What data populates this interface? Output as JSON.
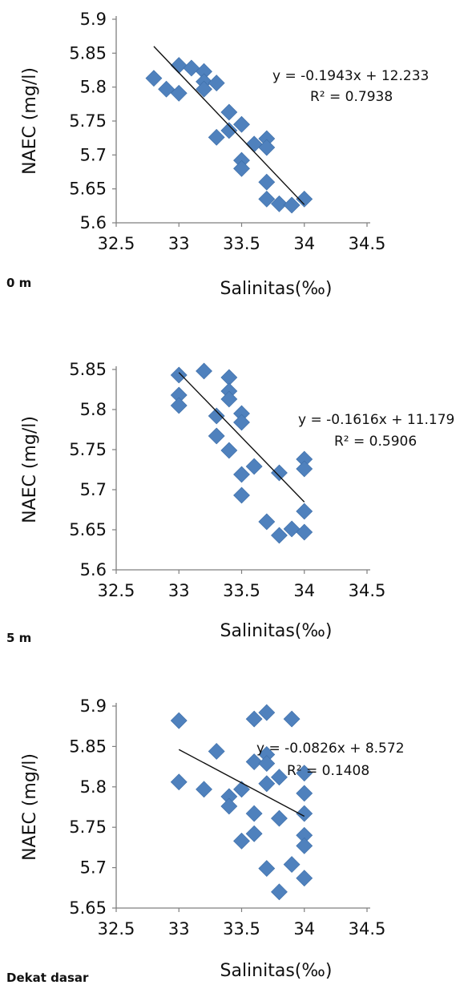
{
  "chart_data": [
    {
      "type": "scatter",
      "panel_label": "0 m",
      "xlabel": "Salinitas(‰)",
      "ylabel": "NAEC (mg/l)",
      "xlim": [
        32.5,
        34.5
      ],
      "ylim": [
        5.6,
        5.9
      ],
      "xticks": [
        "32.5",
        "33",
        "33.5",
        "34",
        "34.5"
      ],
      "yticks": [
        "5.6",
        "5.65",
        "5.7",
        "5.75",
        "5.8",
        "5.85",
        "5.9"
      ],
      "marker_color": "#4f81bd",
      "trendline": {
        "slope": -0.1943,
        "intercept": 12.233,
        "x_range": [
          32.8,
          34.0
        ]
      },
      "equation": "y = -0.1943x + 12.233",
      "r_squared": "R² = 0.7938",
      "points": [
        [
          32.8,
          5.813
        ],
        [
          32.9,
          5.797
        ],
        [
          33.0,
          5.832
        ],
        [
          33.0,
          5.791
        ],
        [
          33.1,
          5.828
        ],
        [
          33.2,
          5.823
        ],
        [
          33.2,
          5.808
        ],
        [
          33.2,
          5.797
        ],
        [
          33.3,
          5.806
        ],
        [
          33.3,
          5.726
        ],
        [
          33.4,
          5.763
        ],
        [
          33.4,
          5.736
        ],
        [
          33.5,
          5.745
        ],
        [
          33.5,
          5.692
        ],
        [
          33.5,
          5.68
        ],
        [
          33.6,
          5.716
        ],
        [
          33.7,
          5.724
        ],
        [
          33.7,
          5.711
        ],
        [
          33.7,
          5.66
        ],
        [
          33.7,
          5.635
        ],
        [
          33.8,
          5.628
        ],
        [
          33.9,
          5.626
        ],
        [
          34.0,
          5.635
        ]
      ]
    },
    {
      "type": "scatter",
      "panel_label": "5 m",
      "xlabel": "Salinitas(‰)",
      "ylabel": "NAEC (mg/l)",
      "xlim": [
        32.5,
        34.5
      ],
      "ylim": [
        5.6,
        5.85
      ],
      "xticks": [
        "32.5",
        "33",
        "33.5",
        "34",
        "34.5"
      ],
      "yticks": [
        "5.6",
        "5.65",
        "5.7",
        "5.75",
        "5.8",
        "5.85"
      ],
      "marker_color": "#4f81bd",
      "trendline": {
        "slope": -0.1616,
        "intercept": 11.179,
        "x_range": [
          33.0,
          34.0
        ]
      },
      "equation": "y = -0.1616x + 11.179",
      "r_squared": "R² = 0.5906",
      "points": [
        [
          33.0,
          5.843
        ],
        [
          33.0,
          5.818
        ],
        [
          33.0,
          5.805
        ],
        [
          33.2,
          5.848
        ],
        [
          33.3,
          5.792
        ],
        [
          33.3,
          5.767
        ],
        [
          33.4,
          5.84
        ],
        [
          33.4,
          5.823
        ],
        [
          33.4,
          5.813
        ],
        [
          33.4,
          5.749
        ],
        [
          33.5,
          5.795
        ],
        [
          33.5,
          5.784
        ],
        [
          33.5,
          5.719
        ],
        [
          33.5,
          5.693
        ],
        [
          33.6,
          5.729
        ],
        [
          33.7,
          5.66
        ],
        [
          33.8,
          5.721
        ],
        [
          33.8,
          5.643
        ],
        [
          33.9,
          5.651
        ],
        [
          34.0,
          5.738
        ],
        [
          34.0,
          5.726
        ],
        [
          34.0,
          5.673
        ],
        [
          34.0,
          5.647
        ]
      ]
    },
    {
      "type": "scatter",
      "panel_label": "Dekat dasar",
      "xlabel": "Salinitas(‰)",
      "ylabel": "NAEC (mg/l)",
      "xlim": [
        32.5,
        34.5
      ],
      "ylim": [
        5.65,
        5.9
      ],
      "xticks": [
        "32.5",
        "33",
        "33.5",
        "34",
        "34.5"
      ],
      "yticks": [
        "5.65",
        "5.7",
        "5.75",
        "5.8",
        "5.85",
        "5.9"
      ],
      "marker_color": "#4f81bd",
      "trendline": {
        "slope": -0.0826,
        "intercept": 8.572,
        "x_range": [
          33.0,
          34.0
        ]
      },
      "equation": "y = -0.0826x + 8.572",
      "r_squared": "R² = 0.1408",
      "points": [
        [
          33.0,
          5.882
        ],
        [
          33.0,
          5.806
        ],
        [
          33.2,
          5.797
        ],
        [
          33.3,
          5.844
        ],
        [
          33.4,
          5.788
        ],
        [
          33.4,
          5.776
        ],
        [
          33.5,
          5.797
        ],
        [
          33.5,
          5.733
        ],
        [
          33.6,
          5.884
        ],
        [
          33.6,
          5.831
        ],
        [
          33.6,
          5.767
        ],
        [
          33.6,
          5.742
        ],
        [
          33.7,
          5.892
        ],
        [
          33.7,
          5.84
        ],
        [
          33.7,
          5.829
        ],
        [
          33.7,
          5.804
        ],
        [
          33.7,
          5.699
        ],
        [
          33.8,
          5.812
        ],
        [
          33.8,
          5.761
        ],
        [
          33.8,
          5.67
        ],
        [
          33.9,
          5.884
        ],
        [
          33.9,
          5.704
        ],
        [
          34.0,
          5.817
        ],
        [
          34.0,
          5.792
        ],
        [
          34.0,
          5.767
        ],
        [
          34.0,
          5.74
        ],
        [
          34.0,
          5.727
        ],
        [
          34.0,
          5.687
        ]
      ]
    }
  ]
}
